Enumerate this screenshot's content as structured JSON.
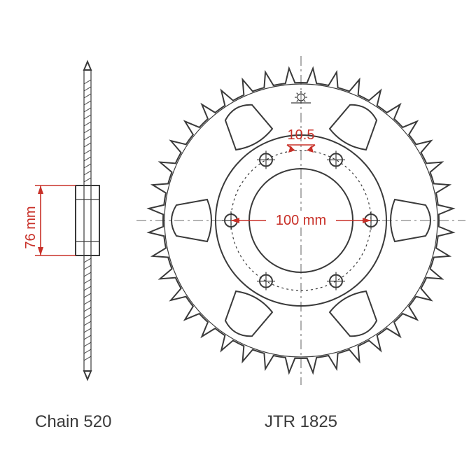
{
  "diagram": {
    "type": "engineering-drawing",
    "product_label": "JTR 1825",
    "chain_label": "Chain 520",
    "dimensions": {
      "hub_width_mm": "76 mm",
      "bolt_circle_mm": "100 mm",
      "bolt_hole_mm": "10.5"
    },
    "colors": {
      "outline": "#3a3a3a",
      "dimension": "#c83028",
      "background": "#ffffff"
    },
    "sprocket": {
      "teeth": 40,
      "spokes": 6,
      "bolt_holes": 6
    },
    "font_family": "Arial",
    "label_fontsize": 24,
    "dim_fontsize": 20
  }
}
